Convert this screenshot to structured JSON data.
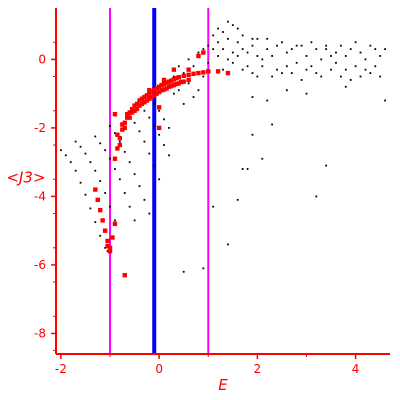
{
  "chart_data": {
    "type": "scatter",
    "title": "",
    "xlabel": "E",
    "ylabel": "<J3>",
    "xlim": [
      -2.1,
      4.7
    ],
    "ylim": [
      -8.6,
      1.5
    ],
    "x_ticks": [
      -2,
      0,
      2,
      4
    ],
    "y_ticks": [
      0,
      -2,
      -4,
      -6,
      -8
    ],
    "grid": false,
    "colors": {
      "axis": "#ff0000",
      "series_black": "#000000",
      "series_red": "#ff0000",
      "vline_magenta": "#ff00ff",
      "vline_blue": "#0000ff"
    },
    "vertical_lines": [
      {
        "x": -1.0,
        "color": "#ff00ff"
      },
      {
        "x": -0.1,
        "color": "#0000ff"
      },
      {
        "x": 1.0,
        "color": "#ff00ff"
      }
    ],
    "series": [
      {
        "color": "#000000",
        "marker": "dot",
        "points": [
          [
            -2.0,
            -2.65
          ],
          [
            -1.9,
            -2.8
          ],
          [
            -1.8,
            -3.0
          ],
          [
            -1.7,
            -3.25
          ],
          [
            -1.6,
            -3.6
          ],
          [
            -1.5,
            -3.95
          ],
          [
            -1.4,
            -4.35
          ],
          [
            -1.3,
            -4.75
          ],
          [
            -1.2,
            -5.15
          ],
          [
            -1.1,
            -5.5
          ],
          [
            -1.05,
            -5.6
          ],
          [
            -1.7,
            -2.4
          ],
          [
            -1.6,
            -2.55
          ],
          [
            -1.5,
            -2.75
          ],
          [
            -1.4,
            -3.0
          ],
          [
            -1.3,
            -3.25
          ],
          [
            -1.2,
            -3.55
          ],
          [
            -1.1,
            -3.9
          ],
          [
            -1.0,
            -4.3
          ],
          [
            -0.9,
            -4.7
          ],
          [
            -1.3,
            -2.25
          ],
          [
            -1.2,
            -2.45
          ],
          [
            -1.1,
            -2.65
          ],
          [
            -1.0,
            -2.9
          ],
          [
            -0.9,
            -3.2
          ],
          [
            -0.8,
            -3.5
          ],
          [
            -0.7,
            -3.9
          ],
          [
            -0.6,
            -4.3
          ],
          [
            -0.5,
            -4.7
          ],
          [
            -1.0,
            -1.95
          ],
          [
            -0.9,
            -2.15
          ],
          [
            -0.8,
            -2.4
          ],
          [
            -0.7,
            -2.7
          ],
          [
            -0.6,
            -3.0
          ],
          [
            -0.5,
            -3.35
          ],
          [
            -0.4,
            -3.7
          ],
          [
            -0.3,
            -4.1
          ],
          [
            -0.2,
            -4.5
          ],
          [
            -0.6,
            -1.6
          ],
          [
            -0.5,
            -1.85
          ],
          [
            -0.4,
            -2.1
          ],
          [
            -0.3,
            -2.4
          ],
          [
            -0.2,
            -2.75
          ],
          [
            -0.1,
            -3.1
          ],
          [
            0.0,
            -3.5
          ],
          [
            -0.3,
            -1.5
          ],
          [
            -0.2,
            -1.7
          ],
          [
            -0.1,
            -1.95
          ],
          [
            0.0,
            -2.2
          ],
          [
            0.1,
            -2.5
          ],
          [
            0.2,
            -2.8
          ],
          [
            -0.2,
            -1.1
          ],
          [
            -0.1,
            -1.3
          ],
          [
            0.0,
            -1.5
          ],
          [
            0.1,
            -1.75
          ],
          [
            0.2,
            -2.0
          ],
          [
            0.5,
            -6.2
          ],
          [
            0.9,
            -6.1
          ],
          [
            1.4,
            -5.4
          ],
          [
            1.1,
            -4.3
          ],
          [
            1.6,
            -4.1
          ],
          [
            1.7,
            -3.2
          ],
          [
            1.8,
            -3.2
          ],
          [
            2.1,
            -2.9
          ],
          [
            1.9,
            -2.2
          ],
          [
            2.3,
            -1.9
          ],
          [
            2.2,
            -1.2
          ],
          [
            3.0,
            -1.0
          ],
          [
            2.0,
            -0.5
          ],
          [
            3.2,
            -4.0
          ],
          [
            3.4,
            -3.1
          ],
          [
            0.3,
            -0.5
          ],
          [
            0.5,
            -0.4
          ],
          [
            0.7,
            -0.2
          ],
          [
            0.9,
            -0.5
          ],
          [
            1.0,
            -0.1
          ],
          [
            1.1,
            0.3
          ],
          [
            1.2,
            0.5
          ],
          [
            1.3,
            0.3
          ],
          [
            1.4,
            0.6
          ],
          [
            1.5,
            -0.1
          ],
          [
            1.6,
            0.5
          ],
          [
            1.7,
            -0.3
          ],
          [
            1.8,
            0.2
          ],
          [
            1.9,
            0.4
          ],
          [
            2.0,
            0.6
          ],
          [
            2.1,
            -0.2
          ],
          [
            2.2,
            0.3
          ],
          [
            2.3,
            0.1
          ],
          [
            2.4,
            0.4
          ],
          [
            2.5,
            -0.4
          ],
          [
            2.6,
            0.2
          ],
          [
            2.7,
            0.3
          ],
          [
            2.8,
            -0.1
          ],
          [
            2.9,
            0.4
          ],
          [
            3.0,
            0.1
          ],
          [
            3.1,
            -0.2
          ],
          [
            3.2,
            0.3
          ],
          [
            3.3,
            0.0
          ],
          [
            3.4,
            0.4
          ],
          [
            3.5,
            -0.3
          ],
          [
            3.6,
            0.2
          ],
          [
            3.7,
            -0.5
          ],
          [
            3.8,
            0.1
          ],
          [
            3.9,
            0.3
          ],
          [
            4.0,
            -0.2
          ],
          [
            4.1,
            0.2
          ],
          [
            4.2,
            0.0
          ],
          [
            4.3,
            -0.4
          ],
          [
            4.4,
            0.3
          ],
          [
            4.5,
            0.1
          ],
          [
            4.6,
            -1.2
          ],
          [
            1.2,
            0.9
          ],
          [
            1.4,
            1.1
          ],
          [
            1.5,
            1.0
          ],
          [
            1.3,
            0.8
          ],
          [
            1.6,
            0.9
          ],
          [
            1.1,
            0.7
          ],
          [
            1.7,
            0.7
          ],
          [
            1.9,
            0.6
          ],
          [
            2.2,
            0.6
          ],
          [
            2.5,
            0.5
          ],
          [
            2.8,
            0.4
          ],
          [
            3.1,
            0.5
          ],
          [
            3.4,
            0.3
          ],
          [
            3.7,
            0.4
          ],
          [
            4.0,
            0.5
          ],
          [
            4.3,
            0.4
          ],
          [
            4.6,
            0.3
          ],
          [
            1.5,
            0.2
          ],
          [
            1.8,
            -0.2
          ],
          [
            2.1,
            0.0
          ],
          [
            2.4,
            -0.3
          ],
          [
            2.7,
            -0.4
          ],
          [
            3.0,
            -0.3
          ],
          [
            3.3,
            -0.5
          ],
          [
            3.6,
            -0.1
          ],
          [
            3.9,
            -0.6
          ],
          [
            4.2,
            -0.3
          ],
          [
            4.5,
            -0.5
          ],
          [
            0.6,
            0.0
          ],
          [
            0.8,
            0.2
          ],
          [
            0.4,
            -0.2
          ],
          [
            0.9,
            0.3
          ],
          [
            1.0,
            0.4
          ],
          [
            1.2,
            0.1
          ],
          [
            1.3,
            -0.3
          ],
          [
            1.4,
            0.0
          ],
          [
            1.6,
            0.1
          ],
          [
            1.7,
            0.3
          ],
          [
            1.9,
            -0.4
          ],
          [
            2.0,
            0.1
          ],
          [
            2.3,
            -0.5
          ],
          [
            2.6,
            -0.2
          ],
          [
            2.9,
            -0.6
          ],
          [
            3.2,
            -0.4
          ],
          [
            3.5,
            0.1
          ],
          [
            3.8,
            -0.3
          ],
          [
            4.1,
            -0.5
          ],
          [
            4.4,
            -0.2
          ],
          [
            0.2,
            -0.8
          ],
          [
            0.3,
            -1.0
          ],
          [
            0.4,
            -0.9
          ],
          [
            0.5,
            -1.3
          ],
          [
            0.6,
            -0.7
          ],
          [
            0.7,
            -1.1
          ],
          [
            0.8,
            -0.9
          ],
          [
            1.9,
            -1.1
          ],
          [
            2.6,
            -0.9
          ],
          [
            3.8,
            -0.8
          ]
        ]
      },
      {
        "color": "#ff0000",
        "marker": "square",
        "points": [
          [
            -1.3,
            -3.8
          ],
          [
            -1.25,
            -4.1
          ],
          [
            -1.2,
            -4.4
          ],
          [
            -1.15,
            -4.7
          ],
          [
            -1.1,
            -5.0
          ],
          [
            -1.05,
            -5.3
          ],
          [
            -1.0,
            -5.5
          ],
          [
            -0.95,
            -5.2
          ],
          [
            -0.9,
            -4.8
          ],
          [
            -0.9,
            -2.9
          ],
          [
            -0.85,
            -2.6
          ],
          [
            -0.8,
            -2.3
          ],
          [
            -0.75,
            -2.05
          ],
          [
            -0.7,
            -1.85
          ],
          [
            -0.65,
            -1.7
          ],
          [
            -0.6,
            -1.55
          ],
          [
            -0.55,
            -1.45
          ],
          [
            -0.5,
            -1.35
          ],
          [
            -0.45,
            -1.3
          ],
          [
            -0.4,
            -1.2
          ],
          [
            -0.35,
            -1.15
          ],
          [
            -0.3,
            -1.1
          ],
          [
            -0.25,
            -1.05
          ],
          [
            -0.2,
            -1.0
          ],
          [
            -0.15,
            -0.95
          ],
          [
            -0.1,
            -0.9
          ],
          [
            -0.05,
            -0.85
          ],
          [
            0.0,
            -0.8
          ],
          [
            0.05,
            -0.75
          ],
          [
            0.1,
            -0.72
          ],
          [
            0.15,
            -0.68
          ],
          [
            0.2,
            -0.65
          ],
          [
            0.25,
            -0.62
          ],
          [
            0.3,
            -0.58
          ],
          [
            0.35,
            -0.55
          ],
          [
            0.4,
            -0.52
          ],
          [
            0.5,
            -0.48
          ],
          [
            0.6,
            -0.45
          ],
          [
            0.7,
            -0.42
          ],
          [
            0.8,
            -0.4
          ],
          [
            0.9,
            -0.38
          ],
          [
            -0.8,
            -2.5
          ],
          [
            -0.7,
            -2.0
          ],
          [
            -0.6,
            -1.7
          ],
          [
            -0.5,
            -1.5
          ],
          [
            -0.4,
            -1.35
          ],
          [
            -0.3,
            -1.25
          ],
          [
            -0.2,
            -1.15
          ],
          [
            -0.1,
            -1.05
          ],
          [
            0.0,
            -0.95
          ],
          [
            0.1,
            -0.88
          ],
          [
            0.2,
            -0.8
          ],
          [
            0.3,
            -0.75
          ],
          [
            0.4,
            -0.7
          ],
          [
            0.5,
            -0.65
          ],
          [
            0.6,
            -0.6
          ],
          [
            -0.85,
            -2.2
          ],
          [
            -0.75,
            -1.9
          ],
          [
            -0.65,
            -1.6
          ],
          [
            -0.55,
            -1.55
          ],
          [
            -0.45,
            -1.45
          ],
          [
            -0.35,
            -1.3
          ],
          [
            -0.25,
            -1.2
          ],
          [
            -0.15,
            -1.1
          ],
          [
            -0.05,
            -1.0
          ],
          [
            0.05,
            -0.9
          ],
          [
            0.15,
            -0.85
          ],
          [
            0.25,
            -0.78
          ],
          [
            0.35,
            -0.72
          ],
          [
            0.45,
            -0.66
          ],
          [
            -0.7,
            -6.3
          ],
          [
            0.3,
            -0.3
          ],
          [
            0.6,
            -0.3
          ],
          [
            1.0,
            -0.35
          ],
          [
            1.2,
            -0.35
          ],
          [
            1.4,
            -0.4
          ],
          [
            0.8,
            0.1
          ],
          [
            0.9,
            0.2
          ],
          [
            0.0,
            -2.0
          ],
          [
            0.0,
            -1.4
          ],
          [
            -0.2,
            -0.9
          ],
          [
            0.1,
            -0.6
          ],
          [
            -0.9,
            -1.6
          ],
          [
            -1.0,
            -5.6
          ],
          [
            -1.05,
            -5.45
          ]
        ]
      }
    ]
  }
}
